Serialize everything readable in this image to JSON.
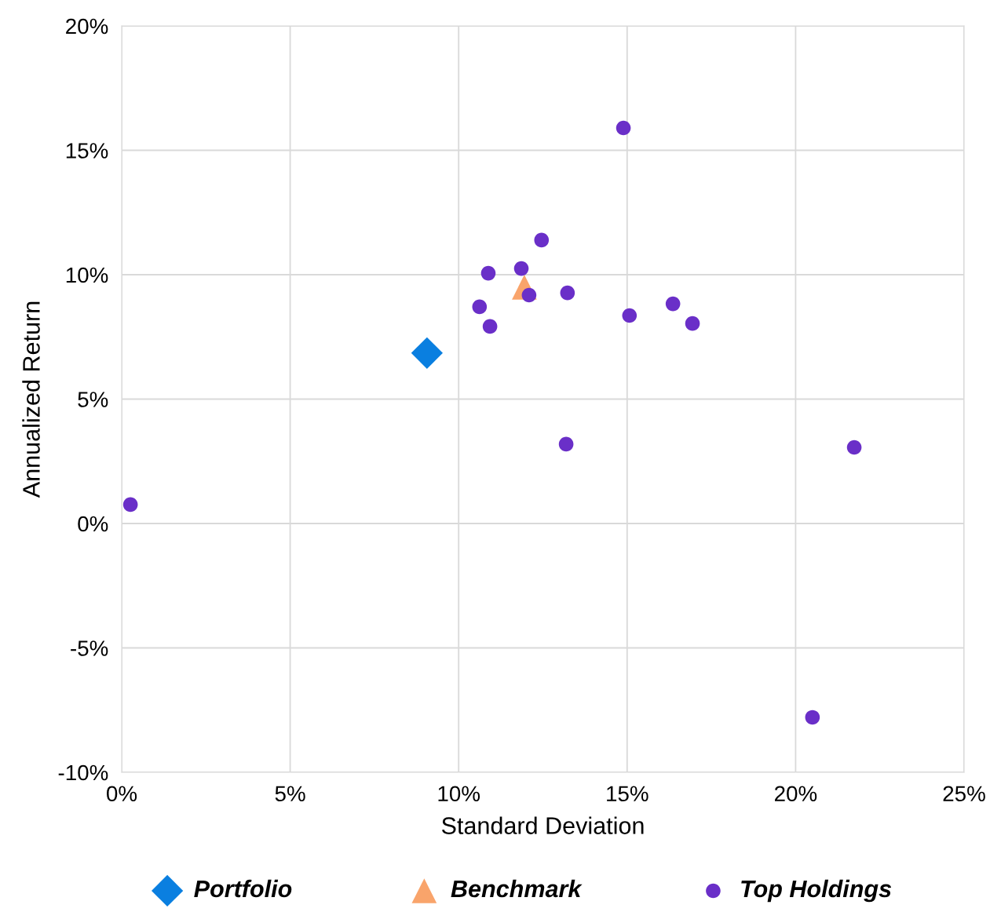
{
  "chart_data": {
    "type": "scatter",
    "xlabel": "Standard Deviation",
    "ylabel": "Annualized Return",
    "xlim": [
      0,
      25
    ],
    "ylim": [
      -10,
      20
    ],
    "xticks": [
      {
        "value": 0,
        "label": "0%"
      },
      {
        "value": 5,
        "label": "5%"
      },
      {
        "value": 10,
        "label": "10%"
      },
      {
        "value": 15,
        "label": "15%"
      },
      {
        "value": 20,
        "label": "20%"
      },
      {
        "value": 25,
        "label": "25%"
      }
    ],
    "yticks": [
      {
        "value": -10,
        "label": "-10%"
      },
      {
        "value": -5,
        "label": "-5%"
      },
      {
        "value": 0,
        "label": "0%"
      },
      {
        "value": 5,
        "label": "5%"
      },
      {
        "value": 10,
        "label": "10%"
      },
      {
        "value": 15,
        "label": "15%"
      },
      {
        "value": 20,
        "label": "20%"
      }
    ],
    "grid": true,
    "legend": "bottom",
    "series": [
      {
        "name": "Portfolio",
        "color": "#0a7fe0",
        "marker": "diamond",
        "x": [
          9.06
        ],
        "values": [
          6.85
        ]
      },
      {
        "name": "Benchmark",
        "color": "#f9a46b",
        "marker": "triangle",
        "x": [
          11.95
        ],
        "values": [
          9.5
        ]
      },
      {
        "name": "Top Holdings",
        "color": "#6a2fc8",
        "marker": "circle",
        "x": [
          0.26,
          10.62,
          10.88,
          10.93,
          11.86,
          12.09,
          12.46,
          13.23,
          13.19,
          14.89,
          15.07,
          16.36,
          16.94,
          20.5,
          21.74
        ],
        "values": [
          0.76,
          8.71,
          10.06,
          7.92,
          10.25,
          9.18,
          11.39,
          9.27,
          3.19,
          15.9,
          8.36,
          8.83,
          8.04,
          -7.79,
          3.06
        ]
      }
    ]
  }
}
